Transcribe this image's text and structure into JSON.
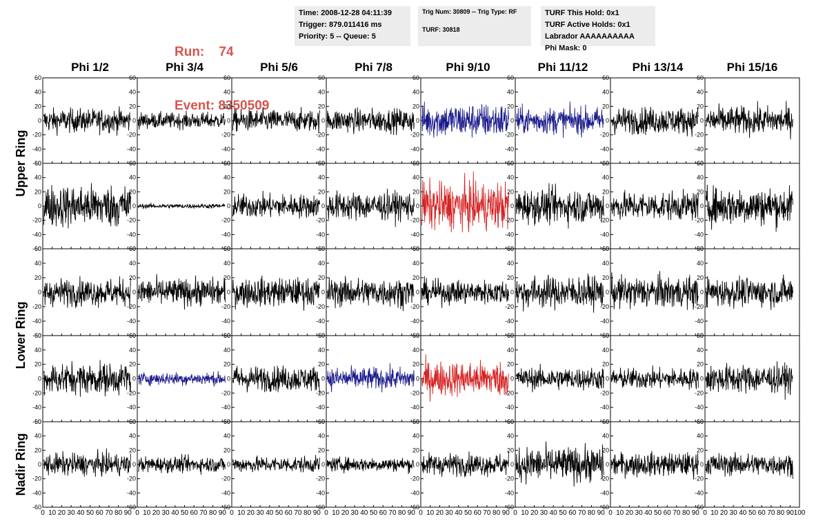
{
  "header": {
    "run_label": "Run:",
    "run_value": "74",
    "event_label": "Event:",
    "event_value": "8350509",
    "run_color": "#d9534f"
  },
  "info_boxes": [
    {
      "lines": [
        "Time: 2008-12-28 04:11:39",
        "Trigger: 879.011416 ms",
        "Priority: 5 -- Queue: 5"
      ]
    },
    {
      "lines": [
        "Trig Num: 30809 -- Trig Type: RF",
        "",
        "TURF: 30818",
        ""
      ]
    },
    {
      "lines": [
        "TURF This Hold: 0x1",
        "TURF Active Holds: 0x1",
        "Labrador AAAAAAAAAA",
        "Phi Mask: 0"
      ]
    }
  ],
  "chart_data": {
    "type": "line",
    "columns": [
      "Phi 1/2",
      "Phi 3/4",
      "Phi 5/6",
      "Phi 7/8",
      "Phi 9/10",
      "Phi 11/12",
      "Phi 13/14",
      "Phi 15/16"
    ],
    "ring_labels": [
      "Upper Ring",
      "Lower Ring",
      "Nadir Ring"
    ],
    "rows": 5,
    "ylim": [
      -60,
      60
    ],
    "yticks": [
      -60,
      -40,
      -20,
      0,
      20,
      40,
      60
    ],
    "xlim": [
      0,
      100
    ],
    "xticks": [
      0,
      10,
      20,
      30,
      40,
      50,
      60,
      70,
      80,
      90,
      100
    ],
    "colors": {
      "normal": "#000000",
      "blue": "#1a1a8c",
      "red": "#d62020"
    },
    "trace_colors": [
      [
        "normal",
        "normal",
        "normal",
        "normal",
        "blue",
        "blue",
        "normal",
        "normal"
      ],
      [
        "normal",
        "normal",
        "normal",
        "normal",
        "red",
        "normal",
        "normal",
        "normal"
      ],
      [
        "normal",
        "normal",
        "normal",
        "normal",
        "normal",
        "normal",
        "normal",
        "normal"
      ],
      [
        "normal",
        "blue",
        "normal",
        "blue",
        "red",
        "normal",
        "normal",
        "normal"
      ],
      [
        "normal",
        "normal",
        "normal",
        "normal",
        "normal",
        "normal",
        "normal",
        "normal"
      ]
    ],
    "amplitudes": [
      [
        15,
        10,
        14,
        15,
        22,
        17,
        17,
        18
      ],
      [
        27,
        3,
        15,
        18,
        30,
        22,
        18,
        24
      ],
      [
        17,
        17,
        18,
        18,
        15,
        20,
        20,
        18
      ],
      [
        20,
        8,
        16,
        14,
        22,
        14,
        13,
        18
      ],
      [
        14,
        10,
        10,
        9,
        14,
        22,
        15,
        14
      ]
    ]
  }
}
